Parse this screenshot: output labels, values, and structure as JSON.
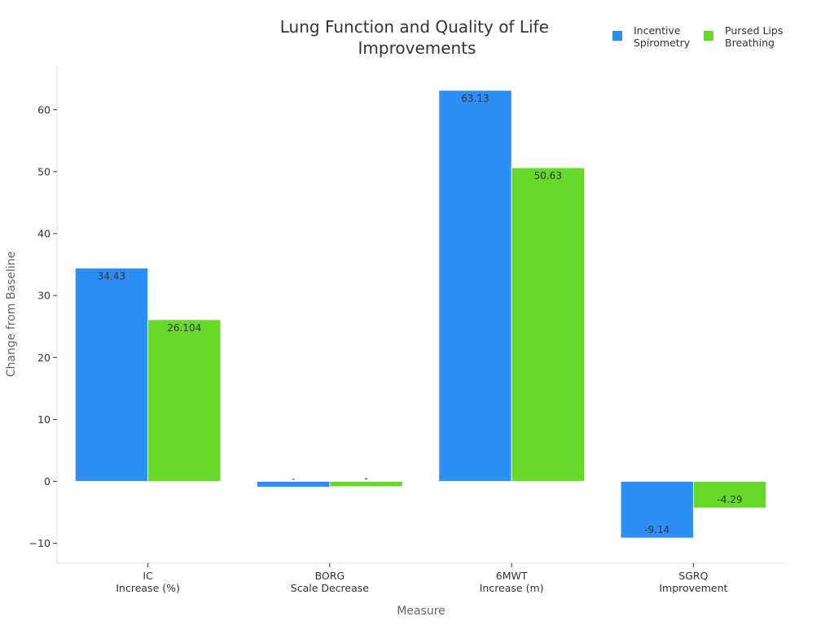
{
  "chart_data": {
    "type": "bar",
    "title": [
      "Lung Function and Quality of Life",
      "Improvements"
    ],
    "xlabel": "Measure",
    "ylabel": "Change from Baseline",
    "categories": [
      [
        "IC",
        "Increase (%)"
      ],
      [
        "BORG",
        "Scale Decrease"
      ],
      [
        "6MWT",
        "Increase (m)"
      ],
      [
        "SGRQ",
        "Improvement"
      ]
    ],
    "series": [
      {
        "name": [
          "Incentive",
          "Spirometry"
        ],
        "color": "#2d8ff5",
        "values": [
          34.43,
          -0.93,
          63.13,
          -9.14
        ],
        "labels": [
          "34.43",
          "-",
          "63.13",
          "-9.14"
        ]
      },
      {
        "name": [
          "Pursed Lips",
          "Breathing"
        ],
        "color": "#66d929",
        "values": [
          26.104,
          -0.85,
          50.63,
          -4.29
        ],
        "labels": [
          "26.104",
          "-",
          "50.63",
          "-4.29"
        ]
      }
    ],
    "ylim": [
      -13.2,
      67.2
    ],
    "yticks": [
      -10,
      0,
      10,
      20,
      30,
      40,
      50,
      60
    ],
    "ytick_labels": [
      "−10",
      "0",
      "10",
      "20",
      "30",
      "40",
      "50",
      "60"
    ],
    "grid": false,
    "legend_position": "top-right"
  }
}
